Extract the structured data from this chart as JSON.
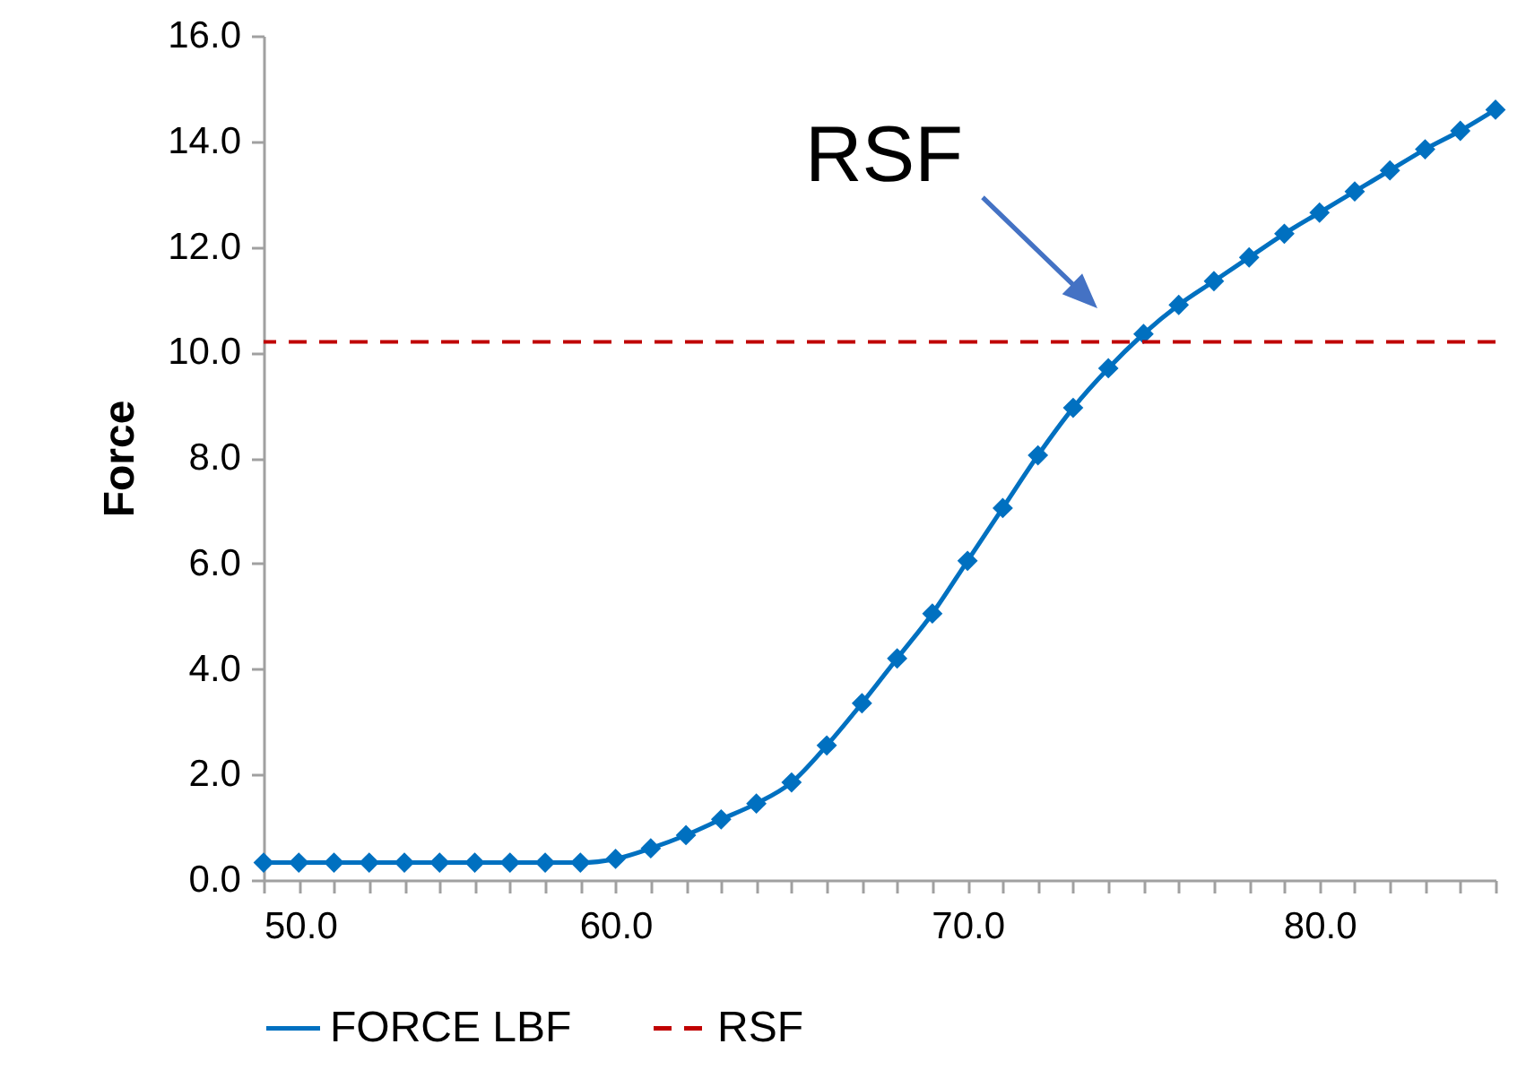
{
  "chart_data": {
    "type": "line",
    "ylabel": "Force",
    "x": [
      50,
      51,
      52,
      53,
      54,
      55,
      56,
      57,
      58,
      59,
      60,
      61,
      62,
      63,
      64,
      65,
      66,
      67,
      68,
      69,
      70,
      71,
      72,
      73,
      74,
      75,
      76,
      77,
      78,
      79,
      80,
      81,
      82,
      83,
      84,
      85
    ],
    "series": [
      {
        "name": "FORCE LBF",
        "color": "#0070c0",
        "values": [
          0.33,
          0.33,
          0.33,
          0.33,
          0.33,
          0.33,
          0.33,
          0.33,
          0.33,
          0.33,
          0.4,
          0.6,
          0.85,
          1.15,
          1.45,
          1.85,
          2.55,
          3.35,
          4.2,
          5.05,
          6.05,
          7.05,
          8.05,
          8.95,
          9.7,
          10.35,
          10.9,
          11.35,
          11.8,
          12.25,
          12.65,
          13.05,
          13.45,
          13.85,
          14.2,
          14.6
        ]
      }
    ],
    "xlim": [
      50,
      85
    ],
    "ylim": [
      0,
      16
    ],
    "xticks": [
      {
        "value": 50,
        "label": "50.0"
      },
      {
        "value": 51,
        "label": null
      },
      {
        "value": 52,
        "label": null
      },
      {
        "value": 53,
        "label": null
      },
      {
        "value": 54,
        "label": null
      },
      {
        "value": 55,
        "label": null
      },
      {
        "value": 56,
        "label": null
      },
      {
        "value": 57,
        "label": null
      },
      {
        "value": 58,
        "label": null
      },
      {
        "value": 59,
        "label": null
      },
      {
        "value": 60,
        "label": "60.0"
      },
      {
        "value": 61,
        "label": null
      },
      {
        "value": 62,
        "label": null
      },
      {
        "value": 63,
        "label": null
      },
      {
        "value": 64,
        "label": null
      },
      {
        "value": 65,
        "label": null
      },
      {
        "value": 66,
        "label": null
      },
      {
        "value": 67,
        "label": null
      },
      {
        "value": 68,
        "label": null
      },
      {
        "value": 69,
        "label": null
      },
      {
        "value": 70,
        "label": "70.0"
      },
      {
        "value": 71,
        "label": null
      },
      {
        "value": 72,
        "label": null
      },
      {
        "value": 73,
        "label": null
      },
      {
        "value": 74,
        "label": null
      },
      {
        "value": 75,
        "label": null
      },
      {
        "value": 76,
        "label": null
      },
      {
        "value": 77,
        "label": null
      },
      {
        "value": 78,
        "label": null
      },
      {
        "value": 79,
        "label": null
      },
      {
        "value": 80,
        "label": "80.0"
      },
      {
        "value": 81,
        "label": null
      },
      {
        "value": 82,
        "label": null
      },
      {
        "value": 83,
        "label": null
      },
      {
        "value": 84,
        "label": null
      },
      {
        "value": 85,
        "label": null
      }
    ],
    "yticks": [
      {
        "value": 0,
        "label": "0.0"
      },
      {
        "value": 2,
        "label": "2.0"
      },
      {
        "value": 4,
        "label": "4.0"
      },
      {
        "value": 6,
        "label": "6.0"
      },
      {
        "value": 8,
        "label": "8.0"
      },
      {
        "value": 10,
        "label": "10.0"
      },
      {
        "value": 12,
        "label": "12.0"
      },
      {
        "value": 14,
        "label": "14.0"
      },
      {
        "value": 16,
        "label": "16.0"
      }
    ],
    "ref_lines": [
      {
        "axis": "y",
        "value": 10.2,
        "label": "RSF",
        "color": "#c00000",
        "line_style": "dashed"
      }
    ],
    "annotations": [
      "RSF"
    ],
    "legend": "bottom",
    "marker": "diamond",
    "line_style": "solid",
    "grid": false
  }
}
